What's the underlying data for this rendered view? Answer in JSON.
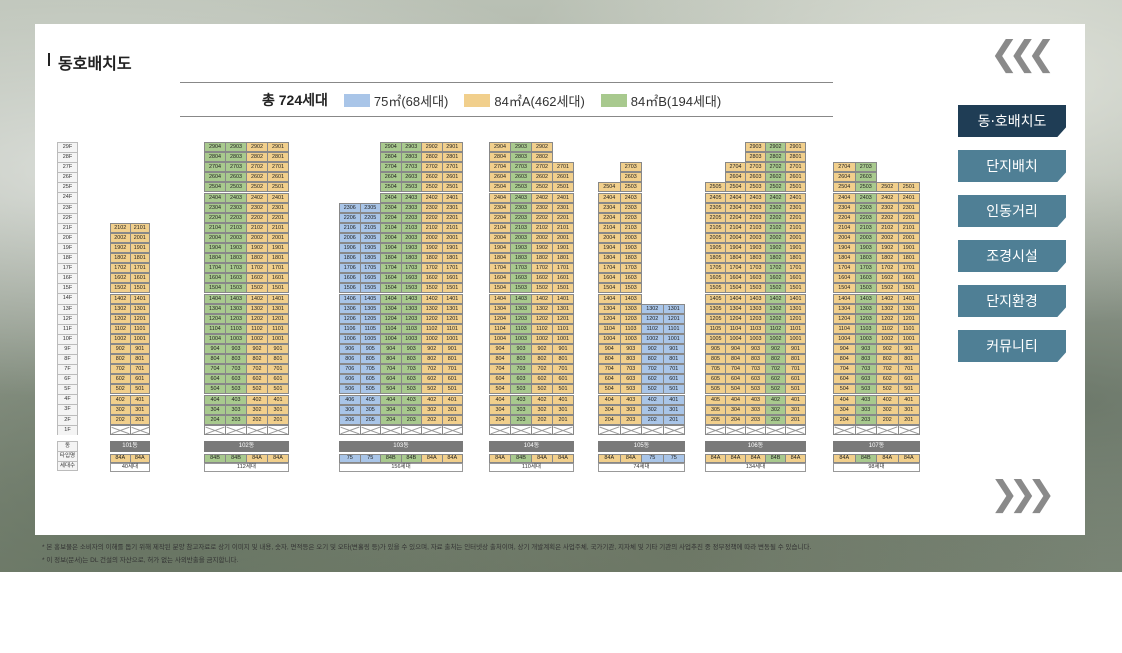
{
  "page": {
    "title": "동호배치도"
  },
  "legend": {
    "total": "총 724세대",
    "items": [
      {
        "label": "75㎡(68세대)",
        "color": "#a9c5e8"
      },
      {
        "label": "84㎡A(462세대)",
        "color": "#f1cf8c"
      },
      {
        "label": "84㎡B(194세대)",
        "color": "#a8c98e"
      }
    ]
  },
  "floors": [
    "29F",
    "28F",
    "27F",
    "26F",
    "25F",
    "24F",
    "23F",
    "22F",
    "21F",
    "20F",
    "19F",
    "18F",
    "17F",
    "16F",
    "15F",
    "14F",
    "13F",
    "12F",
    "11F",
    "10F",
    "9F",
    "8F",
    "7F",
    "6F",
    "5F",
    "4F",
    "3F",
    "2F",
    "1F",
    "",
    "동",
    "타입명",
    "세대수"
  ],
  "buildings": [
    {
      "name": "101동",
      "lines": [
        "02",
        "01"
      ],
      "types": [
        "84A",
        "84A"
      ],
      "top": 21,
      "count": "40세대",
      "ltypes": [
        "A",
        "A"
      ]
    },
    {
      "name": "102동",
      "lines": [
        "04",
        "03",
        "02",
        "01"
      ],
      "types": [
        "84B",
        "84B",
        "84A",
        "84A"
      ],
      "top": 29,
      "count": "112세대",
      "ltypes": [
        "B",
        "B",
        "A",
        "A"
      ]
    },
    {
      "name": "103동",
      "lines": [
        "06",
        "05",
        "04",
        "03",
        "02",
        "01"
      ],
      "types": [
        "75",
        "75",
        "84B",
        "84B",
        "84A",
        "84A"
      ],
      "top": 23,
      "top_sub": [
        23,
        23,
        29,
        29,
        29,
        29
      ],
      "count": "156세대",
      "ltypes": [
        "C",
        "C",
        "B",
        "B",
        "A",
        "A"
      ]
    },
    {
      "name": "104동",
      "lines": [
        "04",
        "03",
        "02",
        "01"
      ],
      "types": [
        "84A",
        "84B",
        "84A",
        "84A"
      ],
      "top": 29,
      "top_sub": [
        29,
        29,
        29,
        27
      ],
      "count": "110세대",
      "ltypes": [
        "A",
        "B",
        "A",
        "A"
      ]
    },
    {
      "name": "105동",
      "lines": [
        "04",
        "03",
        "02",
        "01"
      ],
      "types": [
        "84A",
        "84A",
        "75",
        "75"
      ],
      "top": 27,
      "top_sub": [
        25,
        27,
        13,
        13
      ],
      "count": "74세대",
      "ltypes": [
        "A",
        "A",
        "C",
        "C"
      ]
    },
    {
      "name": "106동",
      "lines": [
        "05",
        "04",
        "03",
        "02",
        "01"
      ],
      "types": [
        "84A",
        "84A",
        "84A",
        "84B",
        "84A"
      ],
      "top": 29,
      "top_sub": [
        25,
        27,
        29,
        29,
        29
      ],
      "count": "134세대",
      "ltypes": [
        "A",
        "A",
        "A",
        "B",
        "A"
      ]
    },
    {
      "name": "107동",
      "lines": [
        "04",
        "03",
        "02",
        "01"
      ],
      "types": [
        "84A",
        "84B",
        "84A",
        "84A"
      ],
      "top": 27,
      "top_sub": [
        27,
        27,
        25,
        25
      ],
      "count": "98세대",
      "ltypes": [
        "A",
        "B",
        "A",
        "A"
      ]
    }
  ],
  "nav": {
    "items": [
      {
        "label": "동·호배치도",
        "active": true
      },
      {
        "label": "단지배치",
        "active": false
      },
      {
        "label": "인동거리",
        "active": false
      },
      {
        "label": "조경시설",
        "active": false
      },
      {
        "label": "단지환경",
        "active": false
      },
      {
        "label": "커뮤니티",
        "active": false
      }
    ],
    "prev_icon": "triple-chevron-left-icon",
    "next_icon": "triple-chevron-right-icon"
  },
  "footnotes": [
    "* 본 홍보물은 소비자의 이해를 돕기 위해 제작된 분양 참고자료로 상기 이미지 및 내용, 숫자, 면적등은 오기 및 오타(변홀링 등)가 있을 수 있으며, 자료 출처는 인터넷상 출처이며, 상기 개발계획은 사업주체, 국가기관, 지자체 및 기타 기관의 사업추진 중 정부정책에 따라 변동될 수 있습니다.",
    "* 이 정보(문서)는 DL 건설의 자산으로, 허가 없는 사외반출을 금지합니다."
  ],
  "colors": {
    "a84A": "#f1cf8c",
    "a84B": "#a8c98e",
    "a75": "#a9c5e8",
    "nav_active": "#1f3d55",
    "nav_inactive": "#4f7f95"
  }
}
